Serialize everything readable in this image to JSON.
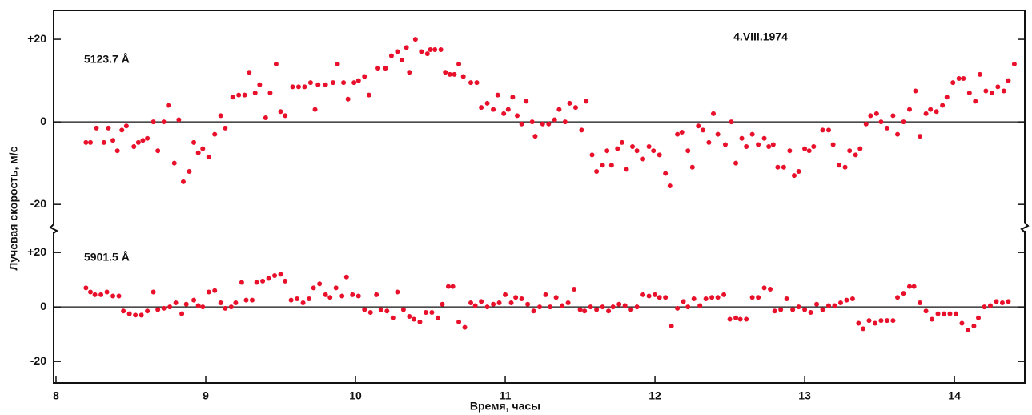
{
  "chart_data": [
    {
      "type": "scatter",
      "annotation": "4.VIII.1974",
      "ylabel": "Лучевая скорость, м/с",
      "xlim": [
        7.984,
        14.47
      ],
      "ylim": [
        -25.4,
        27
      ],
      "hline": 0,
      "yticks": [
        {
          "value": 20,
          "label": "+20"
        },
        0,
        -20
      ],
      "x": [
        8.2,
        8.23,
        8.27,
        8.32,
        8.35,
        8.38,
        8.41,
        8.44,
        8.47,
        8.52,
        8.55,
        8.58,
        8.61,
        8.65,
        8.68,
        8.72,
        8.75,
        8.79,
        8.82,
        8.85,
        8.89,
        8.92,
        8.95,
        8.98,
        9.02,
        9.06,
        9.1,
        9.13,
        9.18,
        9.22,
        9.26,
        9.29,
        9.33,
        9.36,
        9.4,
        9.43,
        9.47,
        9.5,
        9.53,
        9.58,
        9.62,
        9.66,
        9.7,
        9.73,
        9.75,
        9.8,
        9.85,
        9.88,
        9.92,
        9.95,
        9.99,
        10.02,
        10.06,
        10.09,
        10.15,
        10.2,
        10.24,
        10.28,
        10.31,
        10.34,
        10.36,
        10.4,
        10.44,
        10.48,
        10.5,
        10.53,
        10.57,
        10.6,
        10.63,
        10.66,
        10.69,
        10.72,
        10.77,
        10.81,
        10.84,
        10.88,
        10.92,
        10.95,
        10.99,
        11.02,
        11.05,
        11.08,
        11.11,
        11.14,
        11.18,
        11.2,
        11.25,
        11.29,
        11.33,
        11.36,
        11.4,
        11.43,
        11.47,
        11.51,
        11.54,
        11.58,
        11.61,
        11.65,
        11.68,
        11.71,
        11.75,
        11.78,
        11.81,
        11.85,
        11.88,
        11.92,
        11.96,
        11.99,
        12.03,
        12.07,
        12.1,
        12.15,
        12.18,
        12.22,
        12.25,
        12.29,
        12.32,
        12.36,
        12.39,
        12.42,
        12.47,
        12.51,
        12.54,
        12.58,
        12.61,
        12.65,
        12.69,
        12.73,
        12.76,
        12.79,
        12.82,
        12.86,
        12.9,
        12.93,
        12.96,
        13.0,
        13.03,
        13.06,
        13.12,
        13.16,
        13.19,
        13.23,
        13.27,
        13.3,
        13.34,
        13.37,
        13.41,
        13.44,
        13.48,
        13.51,
        13.55,
        13.59,
        13.62,
        13.66,
        13.7,
        13.74,
        13.77,
        13.81,
        13.84,
        13.88,
        13.92,
        13.95,
        13.99,
        14.03,
        14.06,
        14.1,
        14.14,
        14.17,
        14.21,
        14.25,
        14.29,
        14.33,
        14.36,
        14.4
      ],
      "series": [
        {
          "name": "5123.7 Å",
          "color": "#e8102a",
          "values": [
            -5,
            -5,
            -1.5,
            -5,
            -1.5,
            -4.5,
            -7,
            -2,
            -1,
            -6,
            -5,
            -4.5,
            -4,
            0,
            -7,
            0,
            4,
            -10,
            0.5,
            -14.5,
            -12,
            -5,
            -7.5,
            -6.5,
            -8.5,
            -3,
            1.5,
            -1.5,
            6,
            6.5,
            6.5,
            12,
            7,
            9,
            1,
            7,
            14,
            2.5,
            1.5,
            8.5,
            8.5,
            8.5,
            9.5,
            3,
            9,
            9,
            9.5,
            14,
            9.5,
            5.5,
            9.5,
            10,
            11,
            6.5,
            13,
            13,
            16,
            17,
            15,
            18,
            12,
            20,
            17,
            16.5,
            17.5,
            17.5,
            17.5,
            12,
            11.5,
            11.5,
            14,
            11,
            9.5,
            9.5,
            3.5,
            4.5,
            3,
            6.5,
            2,
            3,
            6,
            1.5,
            -0.5,
            5,
            0,
            -3.5,
            -0.5,
            -0.5,
            0.5,
            3,
            0,
            4.5,
            3.5,
            -2,
            5,
            -8,
            -12,
            -10.5,
            -7,
            -10.5,
            -6.5,
            -5,
            -11.5,
            -6,
            -7,
            -9,
            -6,
            -7,
            -8,
            -12.5,
            -15.5,
            -3,
            -2.5,
            -7,
            -11,
            -1,
            -2,
            -5,
            2,
            -3,
            -5.5,
            0,
            -10,
            -4,
            -6,
            -3,
            -5.5,
            -4,
            -6,
            -5.5,
            -11,
            -11,
            -7,
            -13,
            -12,
            -6.5,
            -7,
            -6,
            -2,
            -2,
            -5.5,
            -10.5,
            -11,
            -7,
            -8,
            -6.5,
            -0.5,
            1.5,
            2,
            0,
            -1.5,
            1.5,
            -3,
            0,
            3,
            7.5,
            -3.5,
            2,
            3,
            2.5,
            4,
            6,
            9.5,
            10.5,
            10.5,
            7,
            5,
            11.5,
            7.5,
            7,
            8.5,
            7.5,
            10,
            14
          ]
        }
      ]
    },
    {
      "type": "scatter",
      "xlabel": "Время, часы",
      "xlim": [
        7.984,
        14.47
      ],
      "ylim": [
        -27.9,
        27.4
      ],
      "hline": 0,
      "xticks": [
        8,
        9,
        10,
        11,
        12,
        13,
        14
      ],
      "yticks": [
        {
          "value": 20,
          "label": "+20"
        },
        0,
        -20
      ],
      "x": [
        8.2,
        8.23,
        8.26,
        8.3,
        8.34,
        8.38,
        8.42,
        8.45,
        8.49,
        8.53,
        8.57,
        8.61,
        8.65,
        8.68,
        8.72,
        8.76,
        8.8,
        8.84,
        8.87,
        8.92,
        8.95,
        8.98,
        9.02,
        9.06,
        9.1,
        9.13,
        9.17,
        9.2,
        9.24,
        9.27,
        9.31,
        9.34,
        9.38,
        9.42,
        9.46,
        9.5,
        9.53,
        9.57,
        9.61,
        9.65,
        9.69,
        9.72,
        9.76,
        9.8,
        9.83,
        9.87,
        9.91,
        9.94,
        9.98,
        10.02,
        10.06,
        10.1,
        10.14,
        10.17,
        10.21,
        10.25,
        10.28,
        10.32,
        10.36,
        10.39,
        10.43,
        10.47,
        10.51,
        10.55,
        10.58,
        10.62,
        10.65,
        10.69,
        10.73,
        10.77,
        10.8,
        10.84,
        10.88,
        10.92,
        10.96,
        11.0,
        11.04,
        11.07,
        11.11,
        11.15,
        11.19,
        11.23,
        11.27,
        11.3,
        11.34,
        11.38,
        11.42,
        11.46,
        11.5,
        11.53,
        11.57,
        11.61,
        11.65,
        11.69,
        11.72,
        11.76,
        11.8,
        11.84,
        11.88,
        11.92,
        11.96,
        12.0,
        12.03,
        12.07,
        12.11,
        12.15,
        12.19,
        12.22,
        12.26,
        12.3,
        12.34,
        12.38,
        12.42,
        12.46,
        12.5,
        12.54,
        12.57,
        12.61,
        12.65,
        12.69,
        12.73,
        12.77,
        12.8,
        12.84,
        12.88,
        12.92,
        12.96,
        13.0,
        13.04,
        13.08,
        13.12,
        13.16,
        13.2,
        13.24,
        13.28,
        13.32,
        13.36,
        13.39,
        13.43,
        13.47,
        13.51,
        13.55,
        13.59,
        13.62,
        13.66,
        13.7,
        13.73,
        13.77,
        13.81,
        13.85,
        13.89,
        13.93,
        13.97,
        14.01,
        14.05,
        14.09,
        14.13,
        14.16,
        14.2,
        14.24,
        14.28,
        14.32,
        14.36
      ],
      "series": [
        {
          "name": "5901.5 Å",
          "color": "#e8102a",
          "values": [
            7,
            5.5,
            4.5,
            4.5,
            5.5,
            4,
            4,
            -1.5,
            -2.5,
            -3,
            -3,
            -1.5,
            5.5,
            -1,
            -0.5,
            0,
            1.5,
            -2.5,
            1,
            2.5,
            0.5,
            0,
            5.5,
            6,
            1.5,
            -0.5,
            0,
            1.5,
            9,
            2.5,
            2.5,
            9,
            9.5,
            10.5,
            11.5,
            12,
            9.5,
            2.5,
            3,
            1.5,
            3,
            7,
            8.5,
            4.5,
            3.5,
            7,
            4,
            11,
            4.5,
            4,
            -1,
            -2,
            4.5,
            -1,
            -1.5,
            -4,
            5.5,
            -1,
            -3.5,
            -4.5,
            -5.5,
            -2,
            -2,
            -4,
            1,
            7.5,
            7.5,
            -5.5,
            -7.5,
            1.5,
            0.5,
            2,
            0,
            1,
            1.5,
            4.5,
            1.5,
            3.5,
            3,
            1,
            -1.5,
            0,
            4.5,
            0,
            3.5,
            0.5,
            1.5,
            6.5,
            -1,
            -1.5,
            0,
            -1,
            0,
            -1.5,
            0,
            1,
            0.5,
            -1,
            0,
            4.5,
            4,
            4.5,
            3.5,
            3.5,
            -7,
            -0.5,
            2,
            0,
            3,
            0.5,
            3,
            3.5,
            3.5,
            4.5,
            -4.5,
            -4,
            -4.5,
            -4.5,
            3.5,
            3.5,
            7,
            6.5,
            -1.5,
            -1,
            3,
            -1,
            0,
            -1,
            -2,
            1,
            -1,
            0.5,
            0.5,
            1.5,
            2.5,
            3,
            -6,
            -8,
            -5,
            -6,
            -5,
            -5,
            -5,
            3.5,
            5,
            7.5,
            7.5,
            1.5,
            -1.5,
            -4.5,
            -2.5,
            -2.5,
            -2.5,
            -2.5,
            -6,
            -8.5,
            -7,
            -4,
            0,
            0.5,
            2,
            1.5,
            2
          ]
        }
      ]
    }
  ]
}
